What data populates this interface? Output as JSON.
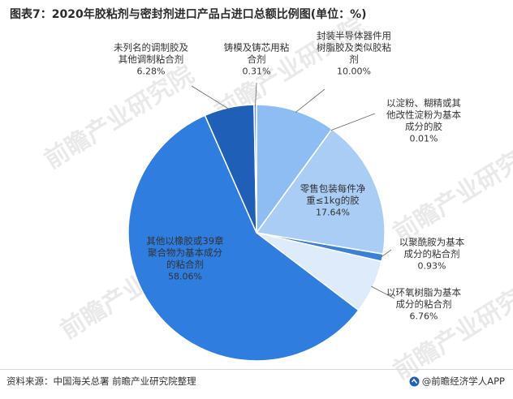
{
  "title": "图表7：2020年胶粘剂与密封剂进口产品占进口总额比例图(单位：%)",
  "source": "资料来源：中国海关总署 前瞻产业研究院整理",
  "brand": "@前瞻经济学人APP",
  "watermark_text": "前瞻产业研究院",
  "chart_data": {
    "type": "pie",
    "title": "图表7：2020年胶粘剂与密封剂进口产品占进口总额比例图(单位：%)",
    "unit": "%",
    "legend": "none",
    "slices": [
      {
        "label": "封装半导体器件用树脂胶及类似胶粘剂",
        "label_lines": [
          "封装半导体器件用",
          "树脂胶及类似胶粘",
          "剂"
        ],
        "value": 10.0,
        "value_text": "10.00%",
        "color": "#8dbdf2"
      },
      {
        "label": "以淀粉、糊精或其他改性淀粉为基本成分的胶",
        "label_lines": [
          "以淀粉、糊精或其",
          "他改性淀粉为基本",
          "成分的胶"
        ],
        "value": 0.01,
        "value_text": "0.01%",
        "color": "#7aaeea"
      },
      {
        "label": "零售包装每件净重≤1kg的胶",
        "label_lines": [
          "零售包装每件净",
          "重≤1kg的胶"
        ],
        "value": 17.64,
        "value_text": "17.64%",
        "color": "#a9cdf5"
      },
      {
        "label": "以聚酰胺为基本成分的粘合剂",
        "label_lines": [
          "以聚酰胺为基本",
          "成分的粘合剂"
        ],
        "value": 0.93,
        "value_text": "0.93%",
        "color": "#3a7fd8"
      },
      {
        "label": "以环氧树脂为基本成分的粘合剂",
        "label_lines": [
          "以环氧树脂为基本",
          "成分的粘合剂"
        ],
        "value": 6.76,
        "value_text": "6.76%",
        "color": "#deebfb"
      },
      {
        "label": "其他以橡胶或39章聚合物为基本成分的粘合剂",
        "label_lines": [
          "其他以橡胶或39章",
          "聚合物为基本成分",
          "的粘合剂"
        ],
        "value": 58.06,
        "value_text": "58.06%",
        "color": "#2f7ddf"
      },
      {
        "label": "未列名的调制胶及其他调制粘合剂",
        "label_lines": [
          "未列名的调制胶及",
          "其他调制粘合剂"
        ],
        "value": 6.28,
        "value_text": "6.28%",
        "color": "#1f5fb8"
      },
      {
        "label": "铸模及铸芯用粘合剂",
        "label_lines": [
          "铸模及铸芯用粘",
          "合剂"
        ],
        "value": 0.31,
        "value_text": "0.31%",
        "color": "#6a9be0"
      }
    ]
  }
}
